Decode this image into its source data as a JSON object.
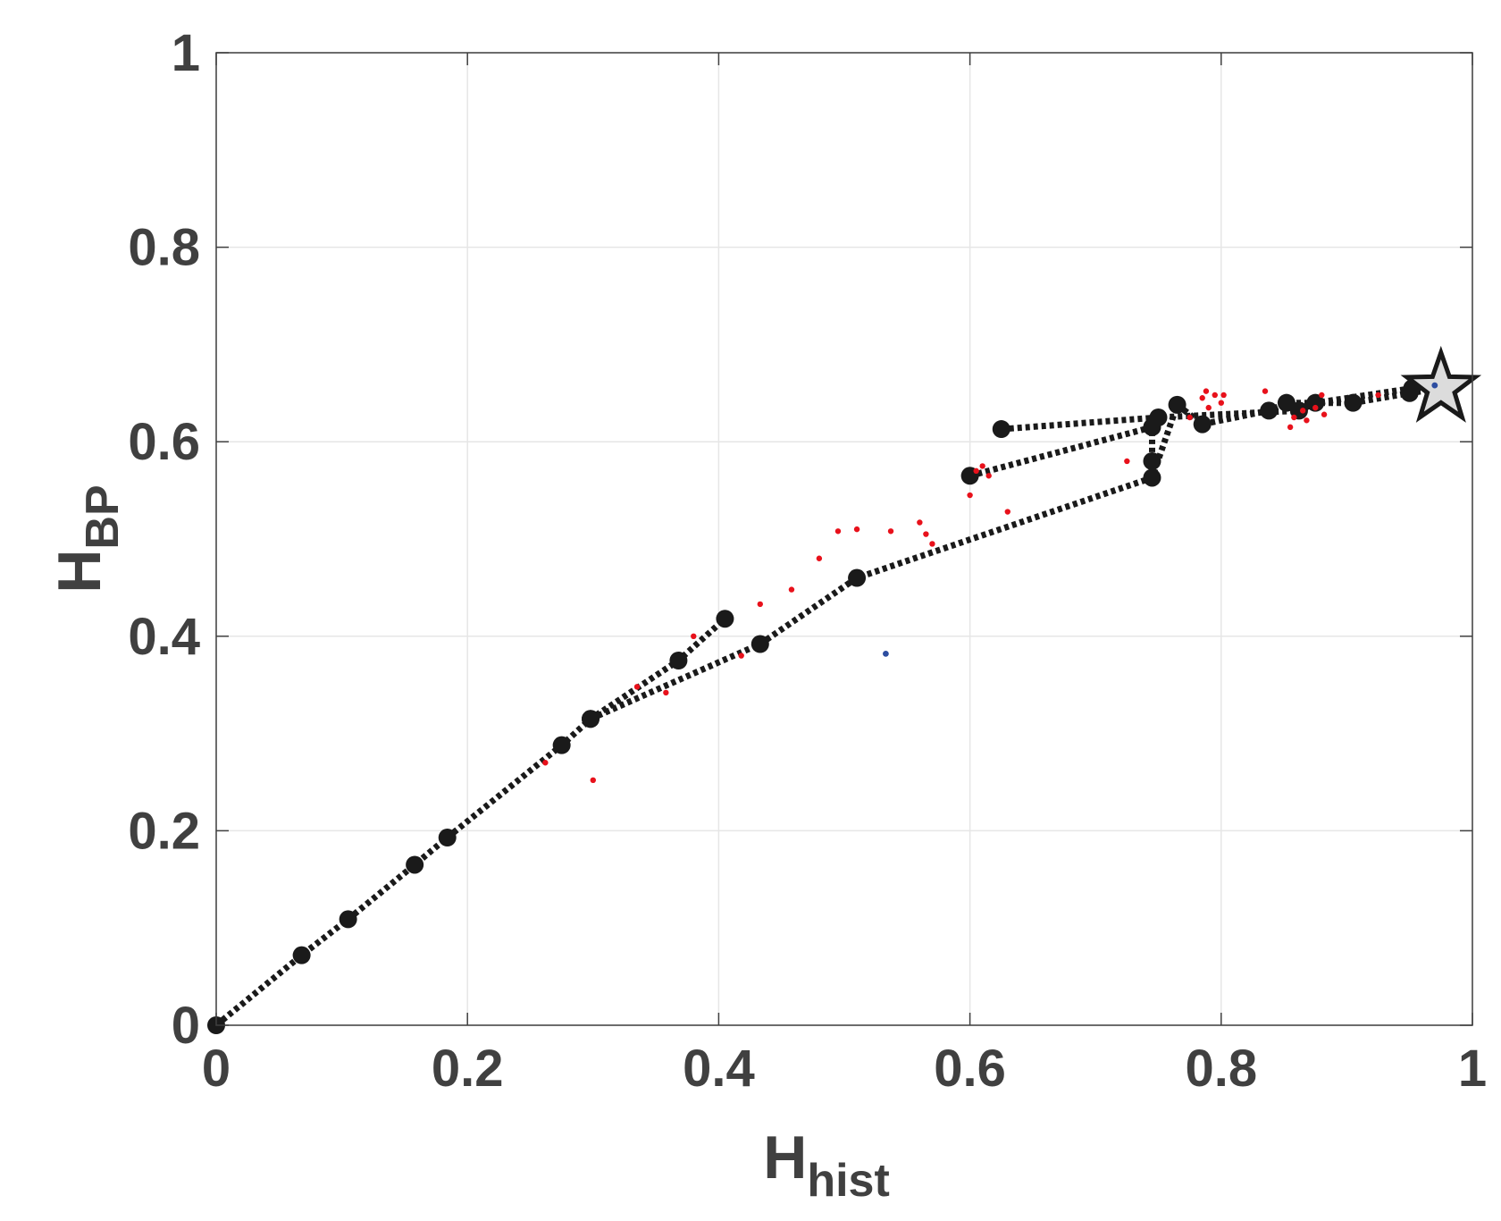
{
  "chart_data": {
    "type": "scatter",
    "xlabel": {
      "main": "H",
      "sub": "hist"
    },
    "ylabel": {
      "main": "H",
      "sub": "BP"
    },
    "xlim": [
      0,
      1
    ],
    "ylim": [
      0,
      1
    ],
    "xticks": [
      "0",
      "0.2",
      "0.4",
      "0.6",
      "0.8",
      "1"
    ],
    "yticks": [
      "0",
      "0.2",
      "0.4",
      "0.6",
      "0.8",
      "1"
    ],
    "grid": true,
    "colors": {
      "path": "#1a1a1a",
      "red_points": "#e8111b",
      "blue_points": "#2d4da0",
      "star_fill": "#dcdcdc",
      "axes": "#404040",
      "grid": "#e6e6e6"
    },
    "paths": [
      {
        "points": [
          [
            0.0,
            0.0
          ],
          [
            0.068,
            0.072
          ],
          [
            0.105,
            0.109
          ],
          [
            0.158,
            0.165
          ],
          [
            0.184,
            0.193
          ],
          [
            0.275,
            0.288
          ],
          [
            0.298,
            0.315
          ],
          [
            0.368,
            0.375
          ],
          [
            0.405,
            0.418
          ]
        ]
      },
      {
        "points": [
          [
            0.298,
            0.315
          ],
          [
            0.433,
            0.392
          ],
          [
            0.51,
            0.46
          ],
          [
            0.745,
            0.563
          ],
          [
            0.765,
            0.638
          ],
          [
            0.785,
            0.618
          ],
          [
            0.838,
            0.632
          ],
          [
            0.852,
            0.64
          ],
          [
            0.905,
            0.64
          ],
          [
            0.95,
            0.65
          ],
          [
            0.975,
            0.655
          ]
        ]
      },
      {
        "points": [
          [
            0.6,
            0.565
          ],
          [
            0.745,
            0.615
          ],
          [
            0.745,
            0.58
          ]
        ]
      },
      {
        "points": [
          [
            0.625,
            0.613
          ],
          [
            0.75,
            0.625
          ],
          [
            0.862,
            0.632
          ],
          [
            0.875,
            0.64
          ],
          [
            0.952,
            0.655
          ],
          [
            0.975,
            0.655
          ]
        ]
      }
    ],
    "red_points": [
      [
        0.262,
        0.27
      ],
      [
        0.3,
        0.252
      ],
      [
        0.335,
        0.348
      ],
      [
        0.358,
        0.342
      ],
      [
        0.38,
        0.4
      ],
      [
        0.418,
        0.38
      ],
      [
        0.433,
        0.433
      ],
      [
        0.458,
        0.448
      ],
      [
        0.48,
        0.48
      ],
      [
        0.495,
        0.508
      ],
      [
        0.51,
        0.51
      ],
      [
        0.537,
        0.508
      ],
      [
        0.56,
        0.517
      ],
      [
        0.565,
        0.505
      ],
      [
        0.57,
        0.495
      ],
      [
        0.6,
        0.545
      ],
      [
        0.605,
        0.57
      ],
      [
        0.61,
        0.575
      ],
      [
        0.615,
        0.565
      ],
      [
        0.63,
        0.528
      ],
      [
        0.725,
        0.58
      ],
      [
        0.775,
        0.625
      ],
      [
        0.785,
        0.645
      ],
      [
        0.788,
        0.652
      ],
      [
        0.79,
        0.635
      ],
      [
        0.795,
        0.648
      ],
      [
        0.8,
        0.64
      ],
      [
        0.802,
        0.648
      ],
      [
        0.835,
        0.652
      ],
      [
        0.855,
        0.615
      ],
      [
        0.858,
        0.625
      ],
      [
        0.865,
        0.632
      ],
      [
        0.868,
        0.622
      ],
      [
        0.875,
        0.635
      ],
      [
        0.88,
        0.648
      ],
      [
        0.882,
        0.628
      ],
      [
        0.925,
        0.648
      ]
    ],
    "blue_points": [
      [
        0.533,
        0.382
      ],
      [
        0.97,
        0.658
      ]
    ],
    "star": [
      0.975,
      0.655
    ]
  }
}
